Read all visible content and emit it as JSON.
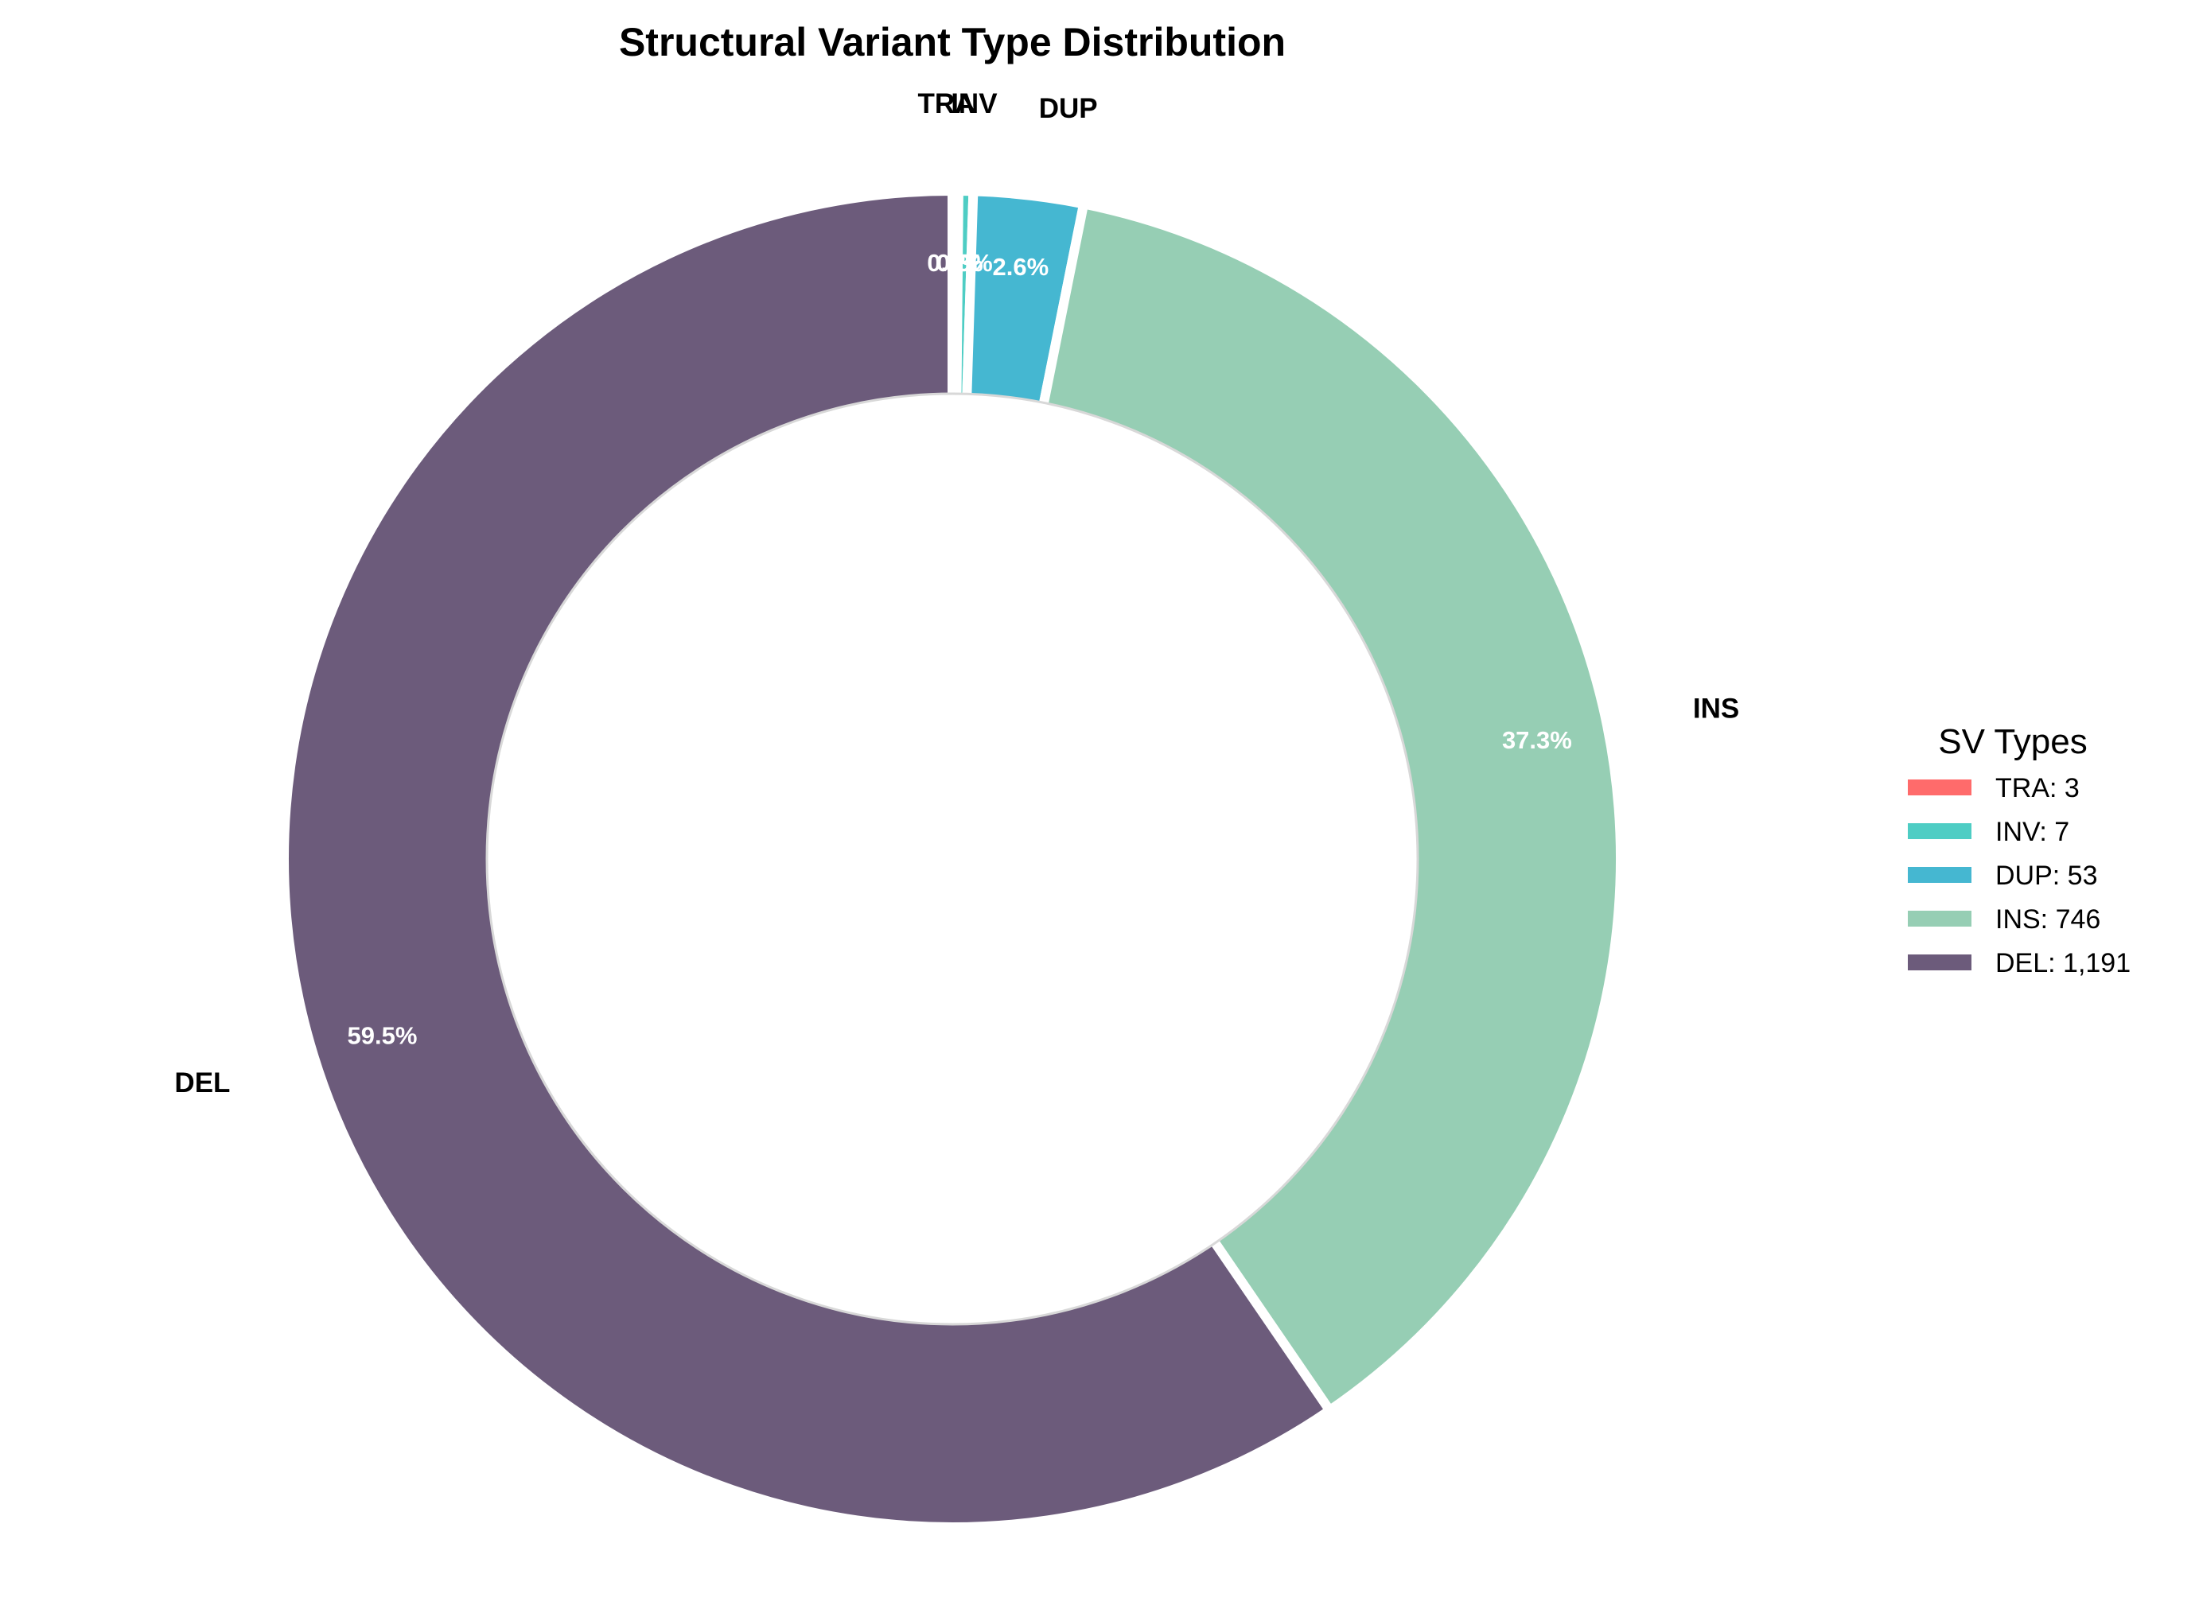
{
  "chart_data": {
    "type": "pie",
    "title": "Structural Variant Type Distribution",
    "donut": true,
    "start_angle_deg": 90,
    "direction": "clockwise",
    "categories": [
      "TRA",
      "INV",
      "DUP",
      "INS",
      "DEL"
    ],
    "values": [
      3,
      7,
      53,
      746,
      1191
    ],
    "percent_labels": [
      "0.1%",
      "0.3%",
      "2.6%",
      "37.3%",
      "59.5%"
    ],
    "colors": [
      "#FF6B6B",
      "#4ECDC4",
      "#45B7D1",
      "#96CEB4",
      "#6C5B7B"
    ],
    "legend": {
      "title": "SV Types",
      "placement": "center-right",
      "entries": [
        "TRA: 3",
        "INV: 7",
        "DUP: 53",
        "INS: 746",
        "DEL: 1,191"
      ]
    }
  }
}
